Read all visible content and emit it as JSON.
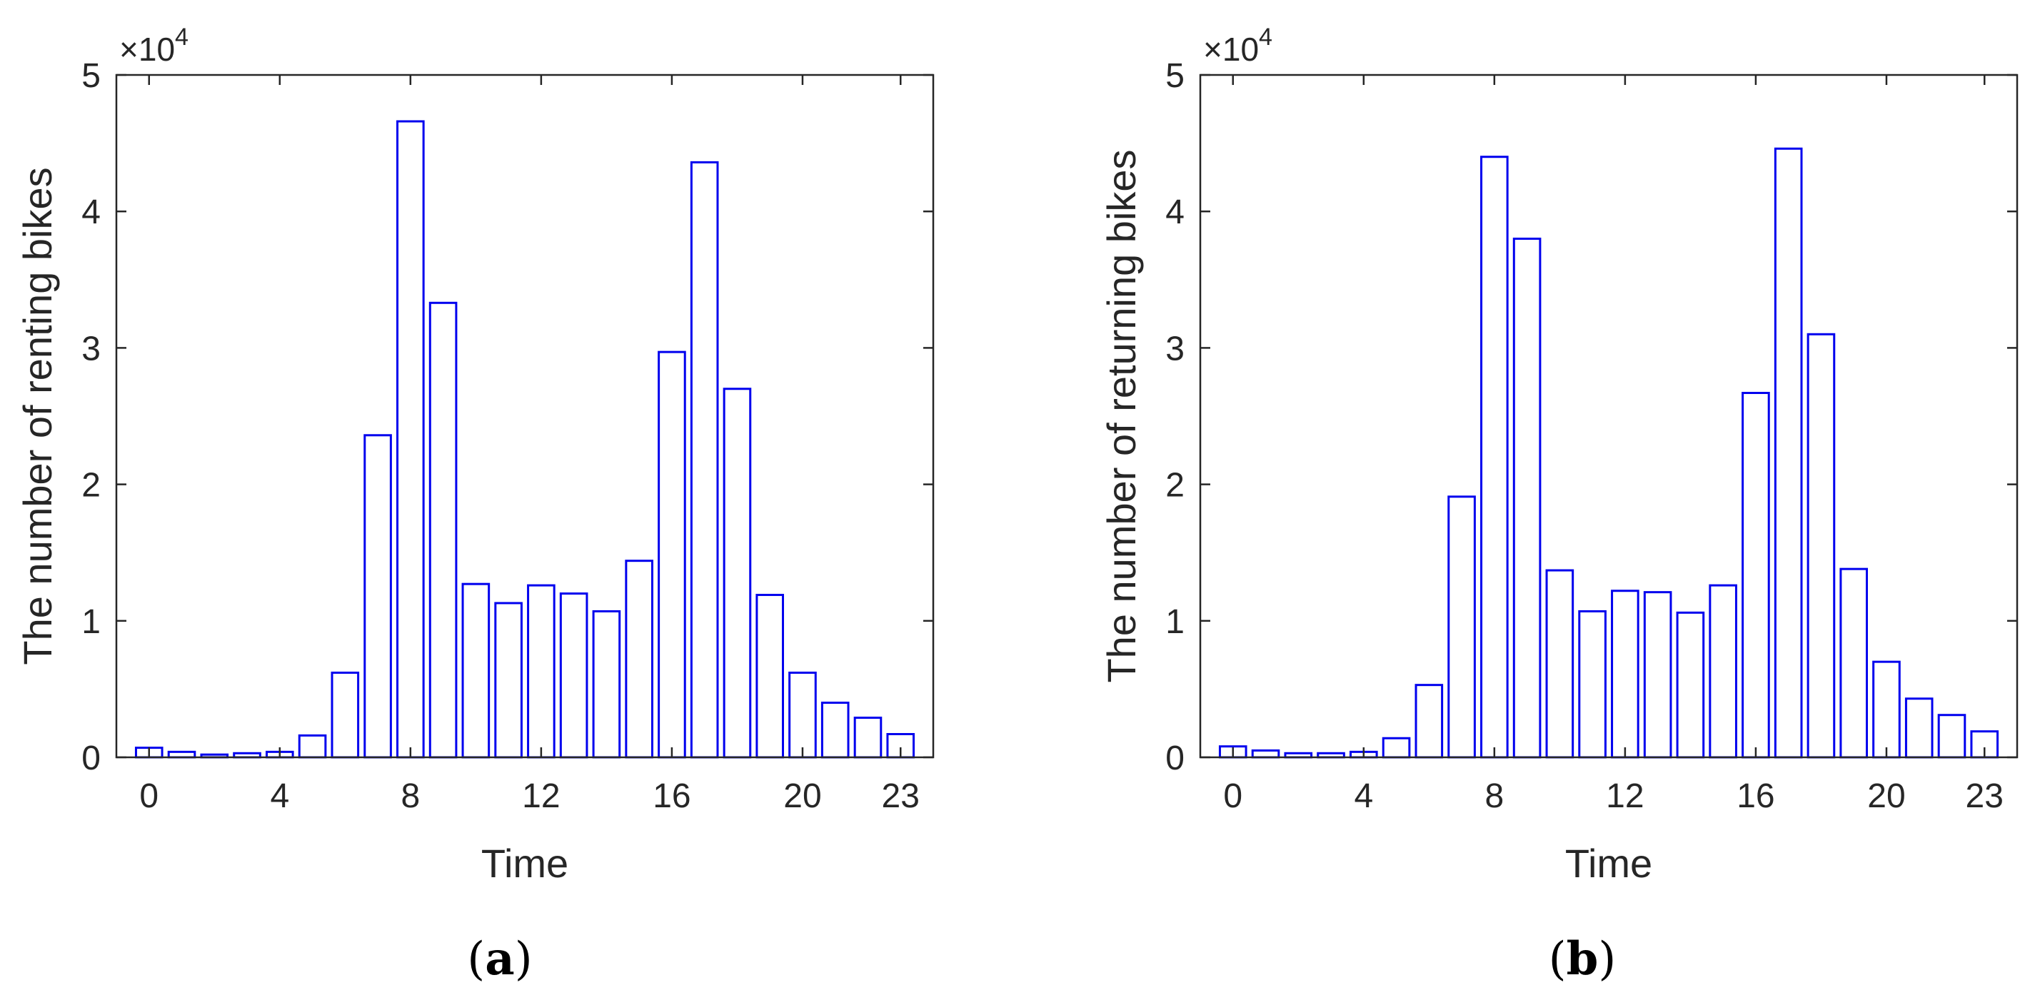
{
  "chart_data": [
    {
      "type": "bar",
      "caption_letter": "a",
      "ylabel": "The number of renting bikes",
      "xlabel": "Time",
      "exponent_label": "×10",
      "exponent_power": "4",
      "ylim": [
        0,
        5
      ],
      "xlim": [
        -1,
        24
      ],
      "yticks": [
        0,
        1,
        2,
        3,
        4,
        5
      ],
      "xticks": [
        0,
        4,
        8,
        12,
        16,
        20,
        23
      ],
      "x": [
        0,
        1,
        2,
        3,
        4,
        5,
        6,
        7,
        8,
        9,
        10,
        11,
        12,
        13,
        14,
        15,
        16,
        17,
        18,
        19,
        20,
        21,
        22,
        23
      ],
      "values": [
        0.07,
        0.04,
        0.02,
        0.03,
        0.04,
        0.16,
        0.62,
        2.36,
        4.66,
        3.33,
        1.27,
        1.13,
        1.26,
        1.2,
        1.07,
        1.44,
        2.97,
        4.36,
        2.7,
        1.19,
        0.62,
        0.4,
        0.29,
        0.17
      ],
      "color": "#0000ee"
    },
    {
      "type": "bar",
      "caption_letter": "b",
      "ylabel": "The number of returning bikes",
      "xlabel": "Time",
      "exponent_label": "×10",
      "exponent_power": "4",
      "ylim": [
        0,
        5
      ],
      "xlim": [
        -1,
        24
      ],
      "yticks": [
        0,
        1,
        2,
        3,
        4,
        5
      ],
      "xticks": [
        0,
        4,
        8,
        12,
        16,
        20,
        23
      ],
      "x": [
        0,
        1,
        2,
        3,
        4,
        5,
        6,
        7,
        8,
        9,
        10,
        11,
        12,
        13,
        14,
        15,
        16,
        17,
        18,
        19,
        20,
        21,
        22,
        23
      ],
      "values": [
        0.08,
        0.05,
        0.03,
        0.03,
        0.04,
        0.14,
        0.53,
        1.91,
        4.4,
        3.8,
        1.37,
        1.07,
        1.22,
        1.21,
        1.06,
        1.26,
        2.67,
        4.46,
        3.1,
        1.38,
        0.7,
        0.43,
        0.31,
        0.19
      ],
      "color": "#0000ee"
    }
  ]
}
